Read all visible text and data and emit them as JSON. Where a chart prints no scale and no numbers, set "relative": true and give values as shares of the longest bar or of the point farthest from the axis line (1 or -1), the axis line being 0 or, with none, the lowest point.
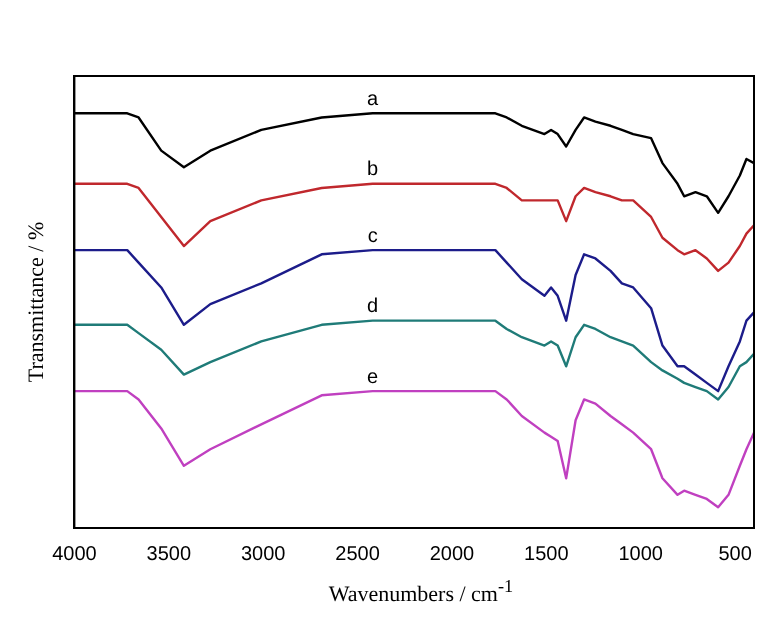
{
  "chart_data": {
    "type": "line",
    "xlabel": "Wavenumbers / cm$^{-1}$",
    "ylabel": "Transmittance / %",
    "relative": true,
    "grid": false,
    "legend": false,
    "tick_labels": "x",
    "marker": "none",
    "line_style": "solid",
    "xlim": [
      4000,
      400
    ],
    "xticks": [
      4000,
      3500,
      3000,
      2500,
      2000,
      1500,
      1000,
      500
    ],
    "x": [
      4000,
      3720,
      3660,
      3540,
      3420,
      3280,
      3010,
      2690,
      2420,
      1770,
      1710,
      1630,
      1510,
      1475,
      1440,
      1395,
      1345,
      1300,
      1240,
      1160,
      1100,
      1040,
      945,
      885,
      805,
      770,
      710,
      650,
      590,
      535,
      475,
      440,
      400
    ],
    "series": [
      {
        "name": "a",
        "color": "#000000",
        "values": [
          1.0,
          1.0,
          0.99,
          0.91,
          0.87,
          0.91,
          0.96,
          0.99,
          1.0,
          1.0,
          0.99,
          0.97,
          0.95,
          0.96,
          0.95,
          0.92,
          0.96,
          0.99,
          0.98,
          0.97,
          0.96,
          0.95,
          0.94,
          0.88,
          0.83,
          0.8,
          0.81,
          0.8,
          0.76,
          0.8,
          0.85,
          0.89,
          0.88
        ]
      },
      {
        "name": "b",
        "color": "#c0282d",
        "values": [
          0.83,
          0.83,
          0.82,
          0.75,
          0.68,
          0.74,
          0.79,
          0.82,
          0.83,
          0.83,
          0.82,
          0.79,
          0.79,
          0.79,
          0.79,
          0.74,
          0.8,
          0.82,
          0.81,
          0.8,
          0.79,
          0.79,
          0.75,
          0.7,
          0.67,
          0.66,
          0.67,
          0.65,
          0.62,
          0.64,
          0.68,
          0.71,
          0.73
        ]
      },
      {
        "name": "c",
        "color": "#1c1c8a",
        "values": [
          0.67,
          0.67,
          0.64,
          0.58,
          0.49,
          0.54,
          0.59,
          0.66,
          0.67,
          0.67,
          0.64,
          0.6,
          0.56,
          0.58,
          0.56,
          0.5,
          0.61,
          0.66,
          0.65,
          0.62,
          0.59,
          0.58,
          0.53,
          0.44,
          0.39,
          0.39,
          0.37,
          0.35,
          0.33,
          0.39,
          0.45,
          0.5,
          0.52
        ]
      },
      {
        "name": "d",
        "color": "#1f7b78",
        "values": [
          0.49,
          0.49,
          0.47,
          0.43,
          0.37,
          0.4,
          0.45,
          0.49,
          0.5,
          0.5,
          0.48,
          0.46,
          0.44,
          0.45,
          0.44,
          0.39,
          0.46,
          0.49,
          0.48,
          0.46,
          0.45,
          0.44,
          0.4,
          0.38,
          0.36,
          0.35,
          0.34,
          0.33,
          0.31,
          0.34,
          0.39,
          0.4,
          0.42
        ]
      },
      {
        "name": "e",
        "color": "#c040c0",
        "values": [
          0.33,
          0.33,
          0.31,
          0.24,
          0.15,
          0.19,
          0.25,
          0.32,
          0.33,
          0.33,
          0.31,
          0.27,
          0.23,
          0.22,
          0.21,
          0.12,
          0.26,
          0.31,
          0.3,
          0.27,
          0.25,
          0.23,
          0.19,
          0.12,
          0.08,
          0.09,
          0.08,
          0.07,
          0.05,
          0.08,
          0.15,
          0.19,
          0.23
        ]
      }
    ]
  }
}
